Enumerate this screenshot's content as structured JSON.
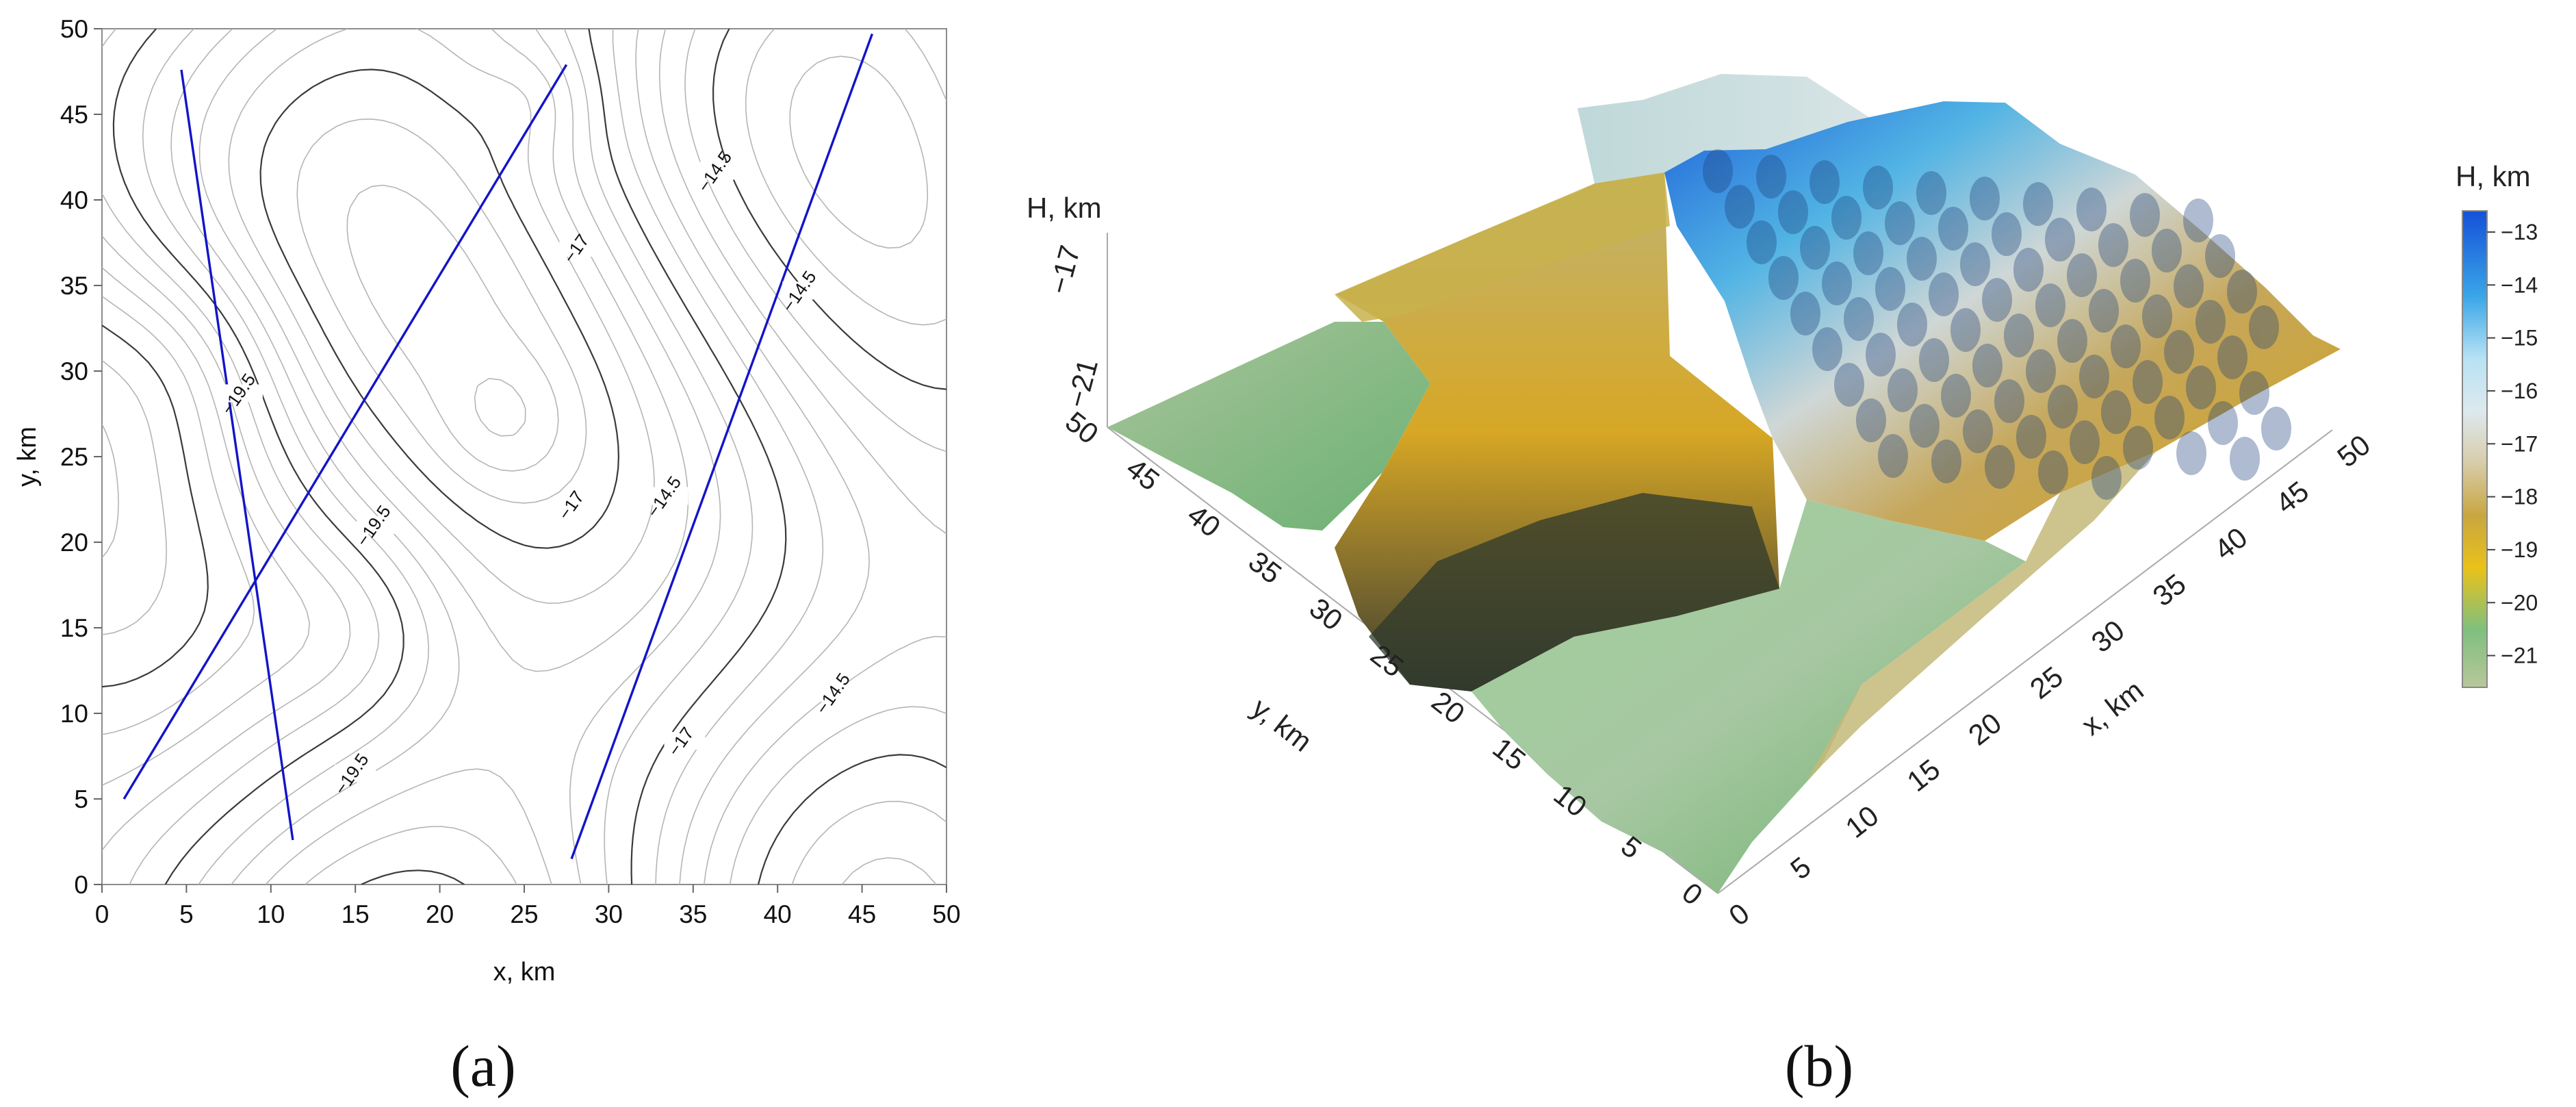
{
  "chart_data": [
    {
      "type": "contour",
      "panel_label": "(a)",
      "xlabel": "x, km",
      "ylabel": "y, km",
      "xlim": [
        0,
        50
      ],
      "ylim": [
        0,
        50
      ],
      "xticks": [
        "0",
        "5",
        "10",
        "15",
        "20",
        "25",
        "30",
        "35",
        "40",
        "45",
        "50"
      ],
      "yticks": [
        "0",
        "5",
        "10",
        "15",
        "20",
        "25",
        "30",
        "35",
        "40",
        "45",
        "50"
      ],
      "contour_labels": [
        {
          "text": "−14.5",
          "x": 36.5,
          "y": 41.5
        },
        {
          "text": "−14.5",
          "x": 41.5,
          "y": 34.5
        },
        {
          "text": "−14.5",
          "x": 33.5,
          "y": 22.5
        },
        {
          "text": "−14.5",
          "x": 43.5,
          "y": 11.0
        },
        {
          "text": "−17",
          "x": 28.3,
          "y": 37.0
        },
        {
          "text": "−17",
          "x": 28.0,
          "y": 22.0
        },
        {
          "text": "−17",
          "x": 34.5,
          "y": 8.2
        },
        {
          "text": "−19.5",
          "x": 8.3,
          "y": 28.5
        },
        {
          "text": "−19.5",
          "x": 16.3,
          "y": 20.8
        },
        {
          "text": "−19.5",
          "x": 15.0,
          "y": 6.3
        }
      ],
      "profile_lines": [
        {
          "x": [
            4.7,
            11.3
          ],
          "y": [
            47.6,
            2.6
          ]
        },
        {
          "x": [
            1.3,
            27.5
          ],
          "y": [
            5.0,
            47.9
          ]
        },
        {
          "x": [
            27.8,
            45.6
          ],
          "y": [
            1.5,
            49.7
          ]
        }
      ]
    },
    {
      "type": "surface3d",
      "panel_label": "(b)",
      "zlabel": "H, km",
      "xlabel": "x, km",
      "ylabel": "y, km",
      "xticks": [
        "0",
        "5",
        "10",
        "15",
        "20",
        "25",
        "30",
        "35",
        "40",
        "45",
        "50"
      ],
      "yticks": [
        "0",
        "5",
        "10",
        "15",
        "20",
        "25",
        "30",
        "35",
        "40",
        "45",
        "50"
      ],
      "zticks": [
        "−17",
        "−21"
      ],
      "colorbar": {
        "title": "H, km",
        "ticks": [
          "−13",
          "−14",
          "−15",
          "−16",
          "−17",
          "−18",
          "−19",
          "−20",
          "−21"
        ],
        "range": [
          -21.6,
          -12.6
        ]
      }
    }
  ]
}
